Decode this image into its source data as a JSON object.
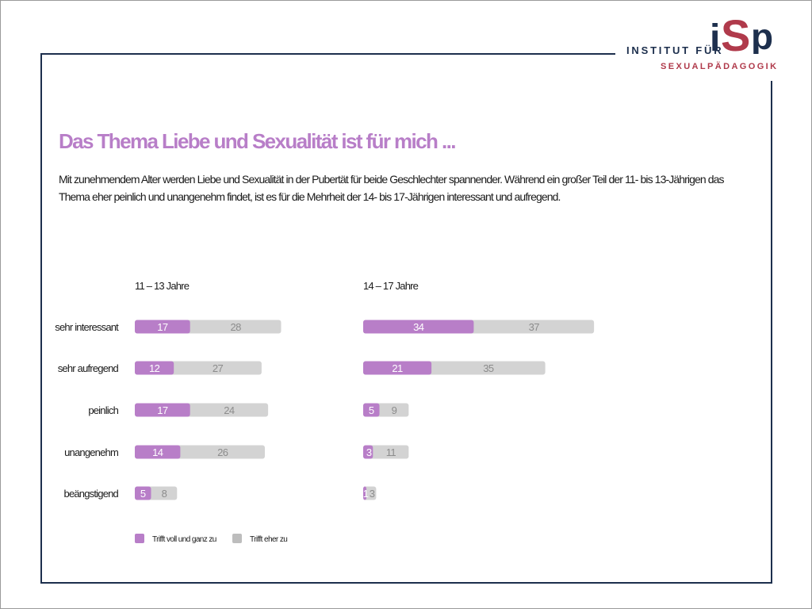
{
  "logo": {
    "institut": "INSTITUT FÜR",
    "sexual": "SEXUALPÄDAGOGIK",
    "mark_i": "i",
    "mark_s": "S",
    "mark_p": "p"
  },
  "title": "Das Thema Liebe und Sexualität ist für mich ...",
  "subtitle": "Mit zunehmendem Alter werden Liebe und Sexualität in der Pubertät für beide Geschlechter spannender. Während ein großer Teil der 11- bis 13-Jährigen das Thema eher peinlich und unangenehm findet, ist es für die Mehrheit der 14- bis 17-Jährigen interessant und aufregend.",
  "colors": {
    "purple": "#b87ec8",
    "grey": "#d3d3d3",
    "navy": "#1d2f4d",
    "red": "#b03a4b",
    "grey_text": "#8c8c8c"
  },
  "chart_data": [
    {
      "type": "bar",
      "orientation": "horizontal",
      "stacked": true,
      "title": "11 – 13 Jahre",
      "categories": [
        "sehr interessant",
        "sehr aufregend",
        "peinlich",
        "unangenehm",
        "beängstigend"
      ],
      "series": [
        {
          "name": "Trifft voll und ganz zu",
          "values": [
            17,
            12,
            17,
            14,
            5
          ]
        },
        {
          "name": "Trifft eher zu",
          "values": [
            28,
            27,
            24,
            26,
            8
          ]
        }
      ]
    },
    {
      "type": "bar",
      "orientation": "horizontal",
      "stacked": true,
      "title": "14 – 17 Jahre",
      "categories": [
        "sehr interessant",
        "sehr aufregend",
        "peinlich",
        "unangenehm",
        "beängstigend"
      ],
      "series": [
        {
          "name": "Trifft voll und ganz zu",
          "values": [
            34,
            21,
            5,
            3,
            1
          ]
        },
        {
          "name": "Trifft eher zu",
          "values": [
            37,
            35,
            9,
            11,
            3
          ]
        }
      ]
    }
  ]
}
